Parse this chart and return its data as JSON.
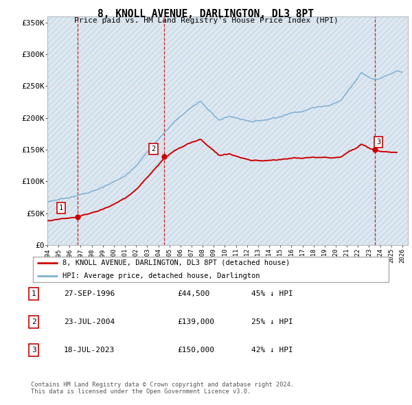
{
  "title": "8, KNOLL AVENUE, DARLINGTON, DL3 8PT",
  "subtitle": "Price paid vs. HM Land Registry's House Price Index (HPI)",
  "ylabel_ticks": [
    "£0",
    "£50K",
    "£100K",
    "£150K",
    "£200K",
    "£250K",
    "£300K",
    "£350K"
  ],
  "ytick_values": [
    0,
    50000,
    100000,
    150000,
    200000,
    250000,
    300000,
    350000
  ],
  "ylim": [
    0,
    360000
  ],
  "xlim_start": 1994.0,
  "xlim_end": 2026.5,
  "sale_dates": [
    1996.74,
    2004.55,
    2023.54
  ],
  "sale_prices": [
    44500,
    139000,
    150000
  ],
  "sale_labels": [
    "1",
    "2",
    "3"
  ],
  "hpi_color": "#7eb0d4",
  "price_color": "#cc0000",
  "legend_label_price": "8, KNOLL AVENUE, DARLINGTON, DL3 8PT (detached house)",
  "legend_label_hpi": "HPI: Average price, detached house, Darlington",
  "table_rows": [
    {
      "num": "1",
      "date": "27-SEP-1996",
      "price": "£44,500",
      "pct": "45% ↓ HPI"
    },
    {
      "num": "2",
      "date": "23-JUL-2004",
      "price": "£139,000",
      "pct": "25% ↓ HPI"
    },
    {
      "num": "3",
      "date": "18-JUL-2023",
      "price": "£150,000",
      "pct": "42% ↓ HPI"
    }
  ],
  "footnote": "Contains HM Land Registry data © Crown copyright and database right 2024.\nThis data is licensed under the Open Government Licence v3.0.",
  "grid_color": "#bbbbbb",
  "dashed_line_color": "#cc0000",
  "hatch_color": "#dde8f0",
  "hatch_edge": "#c8d8e8"
}
